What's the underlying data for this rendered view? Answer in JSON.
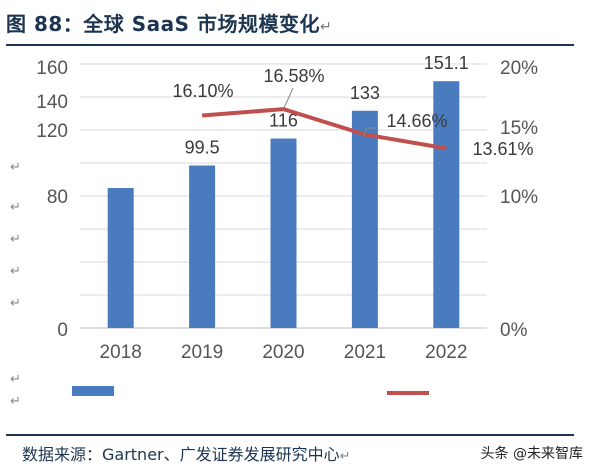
{
  "figure": {
    "title": "图 88：全球 SaaS 市场规模变化",
    "source": "数据来源：Gartner、广发证券发展研究中心",
    "watermark": "头条 @未来智库"
  },
  "colors": {
    "bar": "#4b7bbf",
    "line": "#c0504d",
    "title": "#1d3550"
  },
  "chart_data": {
    "type": "bar",
    "categories": [
      "2018",
      "2019",
      "2020",
      "2021",
      "2022"
    ],
    "series": [
      {
        "type": "bar",
        "axis": "left",
        "values": [
          null,
          99.5,
          116,
          133,
          151.1
        ],
        "value_labels": [
          "",
          "99.5",
          "116",
          "133",
          "151.1"
        ]
      },
      {
        "type": "line",
        "axis": "right",
        "values": [
          null,
          16.1,
          16.58,
          14.66,
          13.61
        ],
        "value_labels": [
          "",
          "16.10%",
          "16.58%",
          "14.66%",
          "13.61%"
        ]
      }
    ],
    "left_axis": {
      "ticks": [
        "160",
        "140",
        "120",
        "80",
        "0"
      ]
    },
    "right_axis": {
      "ticks": [
        "20%",
        "15%",
        "10%",
        "0%"
      ]
    },
    "grid": true
  }
}
